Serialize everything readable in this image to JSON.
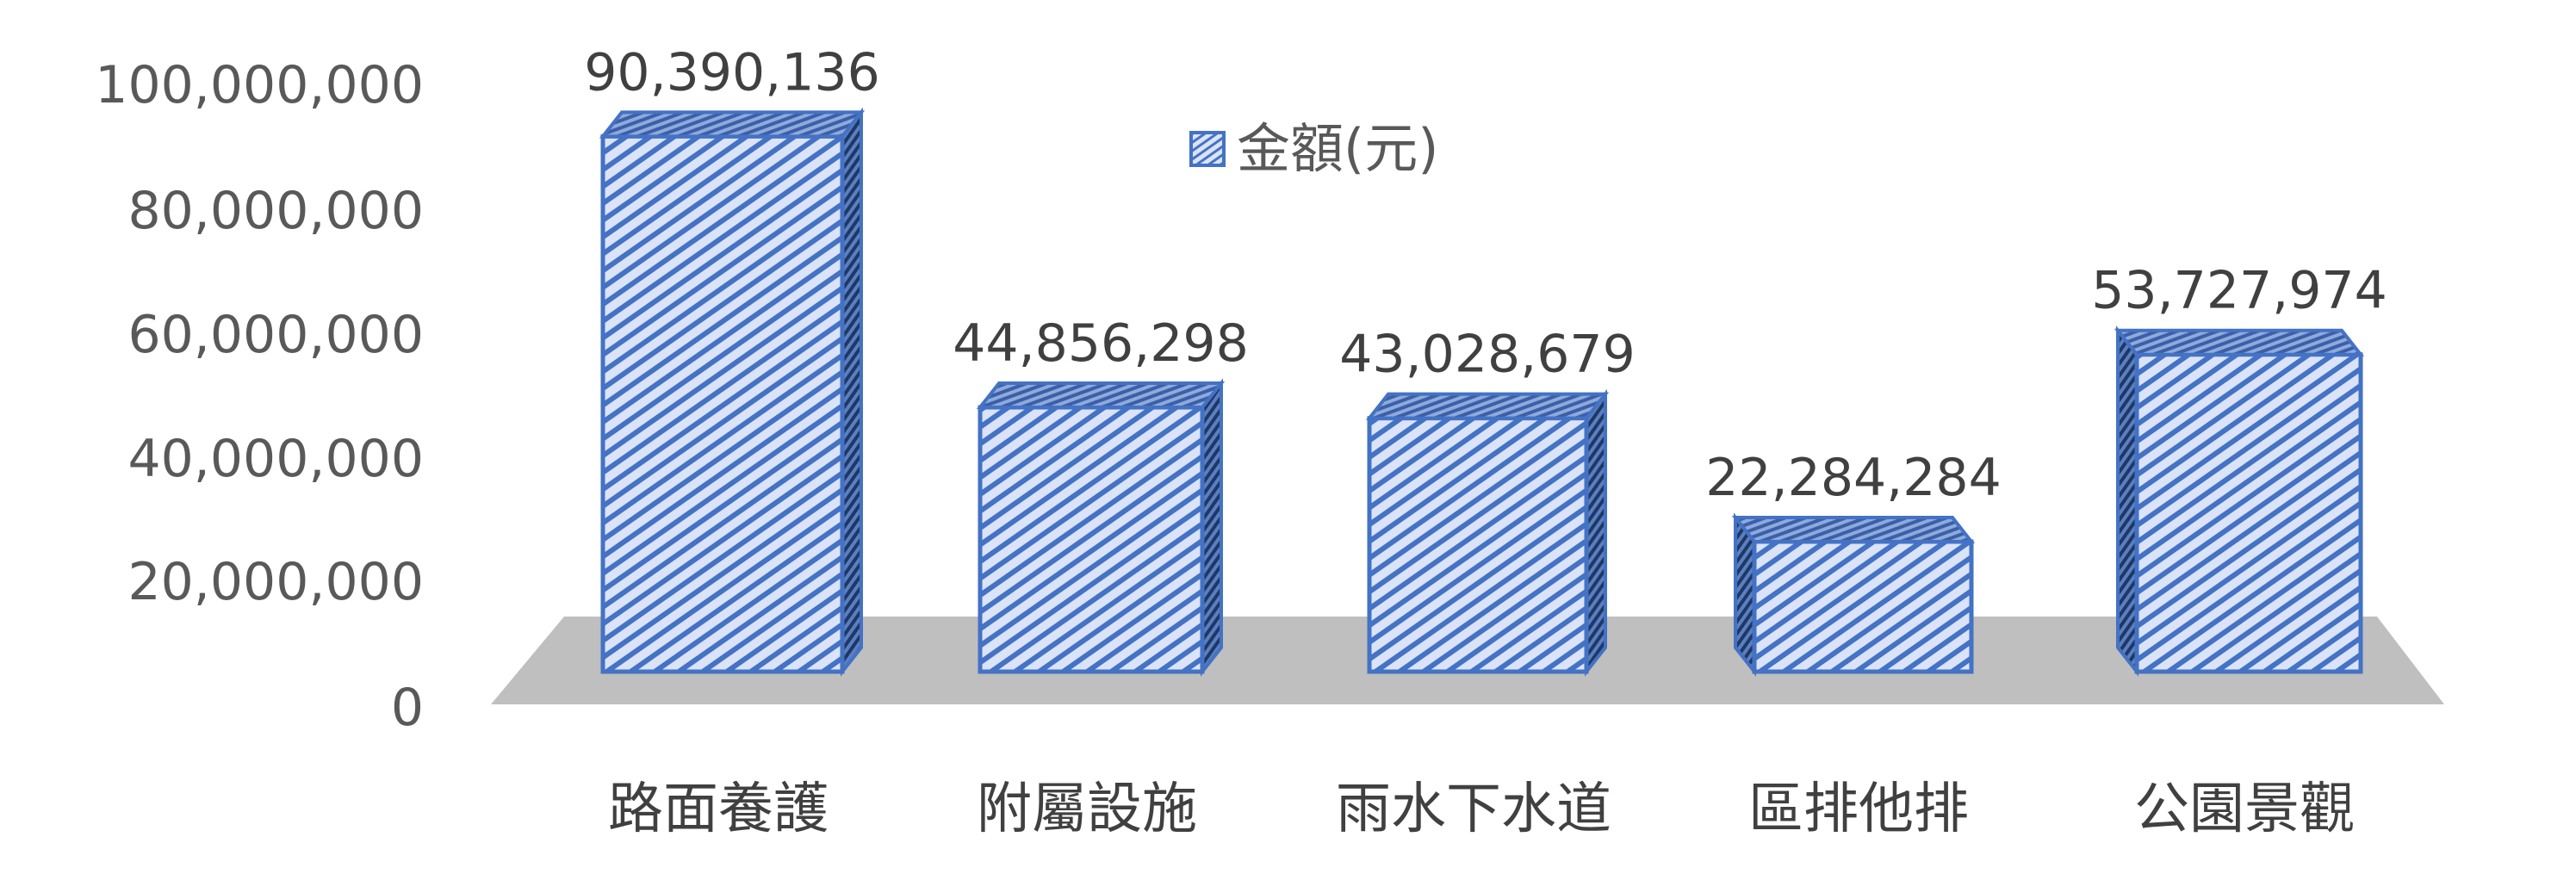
{
  "chart_data": {
    "type": "bar",
    "title": "",
    "xlabel": "",
    "ylabel": "",
    "categories": [
      "路面養護",
      "附屬設施",
      "雨水下水道",
      "區排他排",
      "公園景觀"
    ],
    "series": [
      {
        "name": "金額(元)",
        "values": [
          90390136,
          44856298,
          43028679,
          22284284,
          53727974
        ],
        "labels": [
          "90,390,136",
          "44,856,298",
          "43,028,679",
          "22,284,284",
          "53,727,974"
        ]
      }
    ],
    "y_ticks": [
      "0",
      "20,000,000",
      "40,000,000",
      "60,000,000",
      "80,000,000",
      "100,000,000"
    ],
    "ylim": [
      0,
      100000000
    ],
    "grid": false,
    "legend_position": "top-center",
    "style": "3d",
    "colors": {
      "bar_fill": "#dae3f7",
      "bar_pattern": "#4472c4",
      "bar_edge": "#4472c4",
      "floor": "#bfbfbf"
    }
  }
}
